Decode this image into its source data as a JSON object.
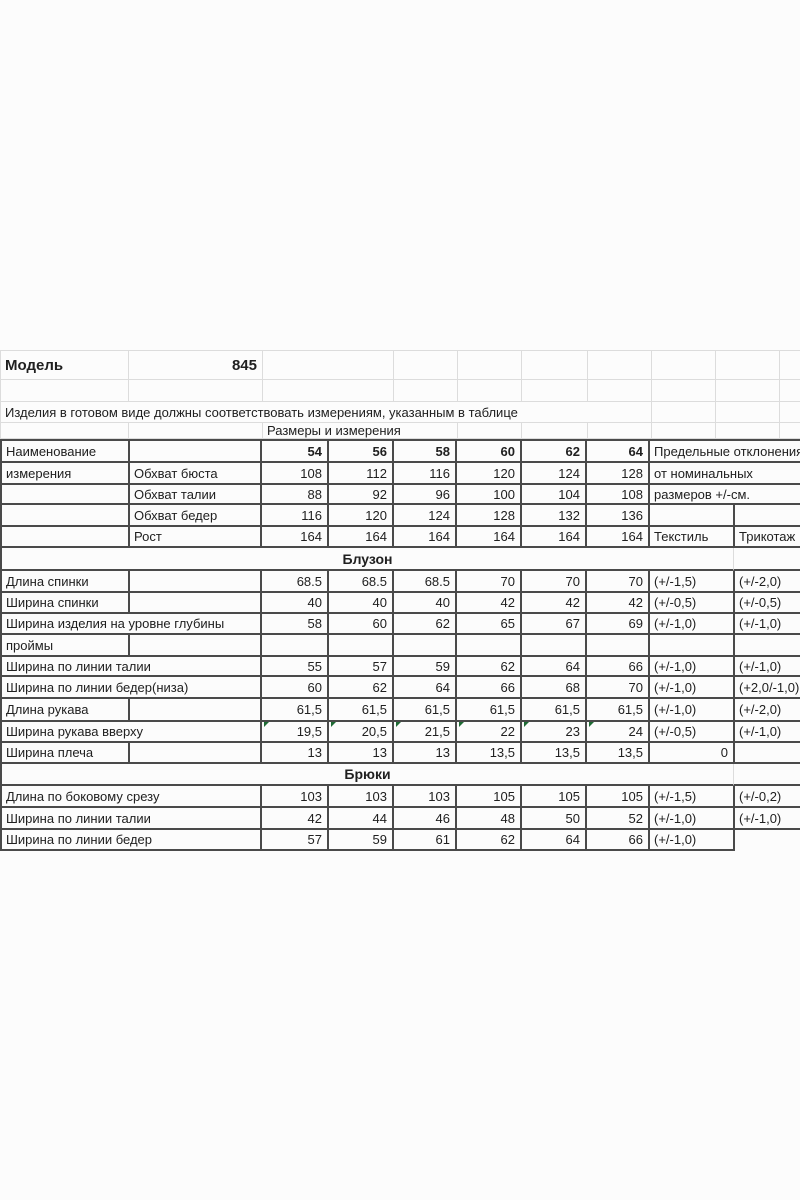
{
  "spreadsheet": {
    "model_label": "Модель",
    "model_value": "845",
    "note": "Изделия в готовом виде должны соответствовать измерениям, указанным в таблице",
    "table_title": "Размеры и измерения",
    "header": {
      "name_line1": "Наименование",
      "name_line2": "измерения",
      "sizes": [
        "54",
        "56",
        "58",
        "60",
        "62",
        "64"
      ],
      "tolerance_line1": "Предельные отклонения",
      "tolerance_line2": "от номинальных",
      "tolerance_line3": "размеров +/-см.",
      "textile_label": "Текстиль",
      "knit_label": "Трикотаж"
    },
    "base_rows": [
      {
        "label": "Обхват бюста",
        "values": [
          "108",
          "112",
          "116",
          "120",
          "124",
          "128"
        ]
      },
      {
        "label": "Обхват талии",
        "values": [
          "88",
          "92",
          "96",
          "100",
          "104",
          "108"
        ]
      },
      {
        "label": "Обхват бедер",
        "values": [
          "116",
          "120",
          "124",
          "128",
          "132",
          "136"
        ]
      },
      {
        "label": "Рост",
        "values": [
          "164",
          "164",
          "164",
          "164",
          "164",
          "164"
        ]
      }
    ],
    "sections": [
      {
        "title": "Блузон",
        "rows": [
          {
            "label": "Длина спинки",
            "values": [
              "68.5",
              "68.5",
              "68.5",
              "70",
              "70",
              "70"
            ],
            "tol_textile": "(+/-1,5)",
            "tol_knit": "(+/-2,0)"
          },
          {
            "label": "Ширина спинки",
            "values": [
              "40",
              "40",
              "40",
              "42",
              "42",
              "42"
            ],
            "tol_textile": "(+/-0,5)",
            "tol_knit": "(+/-0,5)"
          },
          {
            "label": "Ширина изделия на уровне глубины",
            "label_line2": "проймы",
            "values": [
              "58",
              "60",
              "62",
              "65",
              "67",
              "69"
            ],
            "tol_textile": "(+/-1,0)",
            "tol_knit": "(+/-1,0)"
          },
          {
            "label": "Ширина по линии талии",
            "values": [
              "55",
              "57",
              "59",
              "62",
              "64",
              "66"
            ],
            "tol_textile": "(+/-1,0)",
            "tol_knit": "(+/-1,0)"
          },
          {
            "label": "Ширина по линии бедер(низа)",
            "values": [
              "60",
              "62",
              "64",
              "66",
              "68",
              "70"
            ],
            "tol_textile": "(+/-1,0)",
            "tol_knit": "(+2,0/-1,0)"
          },
          {
            "label": "Длина рукава",
            "values": [
              "61,5",
              "61,5",
              "61,5",
              "61,5",
              "61,5",
              "61,5"
            ],
            "tol_textile": "(+/-1,0)",
            "tol_knit": "(+/-2,0)"
          },
          {
            "label": "Ширина рукава вверху",
            "values": [
              "19,5",
              "20,5",
              "21,5",
              "22",
              "23",
              "24"
            ],
            "tol_textile": "(+/-0,5)",
            "tol_knit": "(+/-1,0)"
          },
          {
            "label": "Ширина плеча",
            "values": [
              "13",
              "13",
              "13",
              "13,5",
              "13,5",
              "13,5"
            ],
            "tol_textile": "0",
            "tol_knit": ""
          }
        ]
      },
      {
        "title": "Брюки",
        "rows": [
          {
            "label": "Длина по боковому срезу",
            "values": [
              "103",
              "103",
              "103",
              "105",
              "105",
              "105"
            ],
            "tol_textile": "(+/-1,5)",
            "tol_knit": "(+/-0,2)"
          },
          {
            "label": "Ширина по линии талии",
            "values": [
              "42",
              "44",
              "46",
              "48",
              "50",
              "52"
            ],
            "tol_textile": "(+/-1,0)",
            "tol_knit": "(+/-1,0)"
          },
          {
            "label": "Ширина по линии бедер",
            "values": [
              "57",
              "59",
              "61",
              "62",
              "64",
              "66"
            ],
            "tol_textile": "(+/-1,0)",
            "tol_knit": ""
          }
        ]
      }
    ],
    "colors": {
      "border_dark": "#4a4a4a",
      "grid_light": "#dcdcdc",
      "flag_green": "#1e6b34",
      "text": "#202020"
    }
  }
}
